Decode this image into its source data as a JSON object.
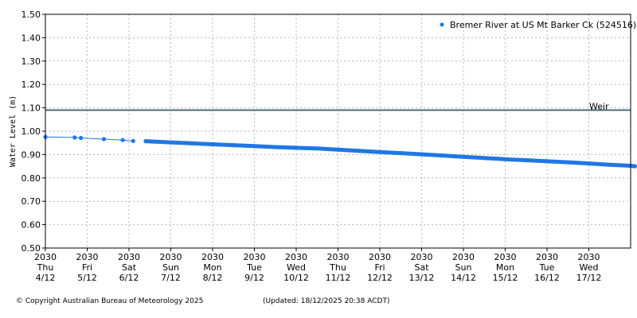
{
  "chart_data": {
    "type": "scatter",
    "title": "",
    "xlabel": "",
    "ylabel": "Water Level (m)",
    "ylim": [
      0.5,
      1.5
    ],
    "yticks": [
      "0.50",
      "0.60",
      "0.70",
      "0.80",
      "0.90",
      "1.00",
      "1.10",
      "1.20",
      "1.30",
      "1.40",
      "1.50"
    ],
    "xticks": [
      {
        "l1": "2030",
        "l2": "Thu",
        "l3": "4/12"
      },
      {
        "l1": "2030",
        "l2": "Fri",
        "l3": "5/12"
      },
      {
        "l1": "2030",
        "l2": "Sat",
        "l3": "6/12"
      },
      {
        "l1": "2030",
        "l2": "Sun",
        "l3": "7/12"
      },
      {
        "l1": "2030",
        "l2": "Mon",
        "l3": "8/12"
      },
      {
        "l1": "2030",
        "l2": "Tue",
        "l3": "9/12"
      },
      {
        "l1": "2030",
        "l2": "Wed",
        "l3": "10/12"
      },
      {
        "l1": "2030",
        "l2": "Thu",
        "l3": "11/12"
      },
      {
        "l1": "2030",
        "l2": "Fri",
        "l3": "12/12"
      },
      {
        "l1": "2030",
        "l2": "Sat",
        "l3": "13/12"
      },
      {
        "l1": "2030",
        "l2": "Sun",
        "l3": "14/12"
      },
      {
        "l1": "2030",
        "l2": "Mon",
        "l3": "15/12"
      },
      {
        "l1": "2030",
        "l2": "Tue",
        "l3": "16/12"
      },
      {
        "l1": "2030",
        "l2": "Wed",
        "l3": "17/12"
      }
    ],
    "xrange": [
      0,
      14.1
    ],
    "grid": true,
    "legend_position": "top-right",
    "series": [
      {
        "name": "Bremer River at US Mt Barker Ck (524516)",
        "color": "#1f77e4",
        "points": [
          [
            0.0,
            0.975
          ],
          [
            0.7,
            0.973
          ],
          [
            0.85,
            0.971
          ],
          [
            1.4,
            0.966
          ],
          [
            1.85,
            0.962
          ],
          [
            2.1,
            0.958
          ],
          [
            2.4,
            0.957
          ],
          [
            3.0,
            0.952
          ],
          [
            3.5,
            0.948
          ],
          [
            4.0,
            0.944
          ],
          [
            4.5,
            0.94
          ],
          [
            5.0,
            0.936
          ],
          [
            5.5,
            0.932
          ],
          [
            6.0,
            0.929
          ],
          [
            6.5,
            0.926
          ],
          [
            7.0,
            0.921
          ],
          [
            7.5,
            0.916
          ],
          [
            8.0,
            0.911
          ],
          [
            8.5,
            0.906
          ],
          [
            9.0,
            0.901
          ],
          [
            9.5,
            0.896
          ],
          [
            10.0,
            0.89
          ],
          [
            10.5,
            0.885
          ],
          [
            11.0,
            0.88
          ],
          [
            11.5,
            0.876
          ],
          [
            12.0,
            0.871
          ],
          [
            12.5,
            0.867
          ],
          [
            13.0,
            0.862
          ],
          [
            13.5,
            0.856
          ],
          [
            14.0,
            0.852
          ],
          [
            14.1,
            0.85
          ]
        ]
      }
    ],
    "reference_lines": [
      {
        "label": "Weir",
        "y": 1.09,
        "color": "#4d6b7a"
      }
    ]
  },
  "footer": {
    "copyright": "© Copyright Australian Bureau of Meteorology 2025",
    "updated": "(Updated: 18/12/2025 20:38 ACDT)"
  }
}
